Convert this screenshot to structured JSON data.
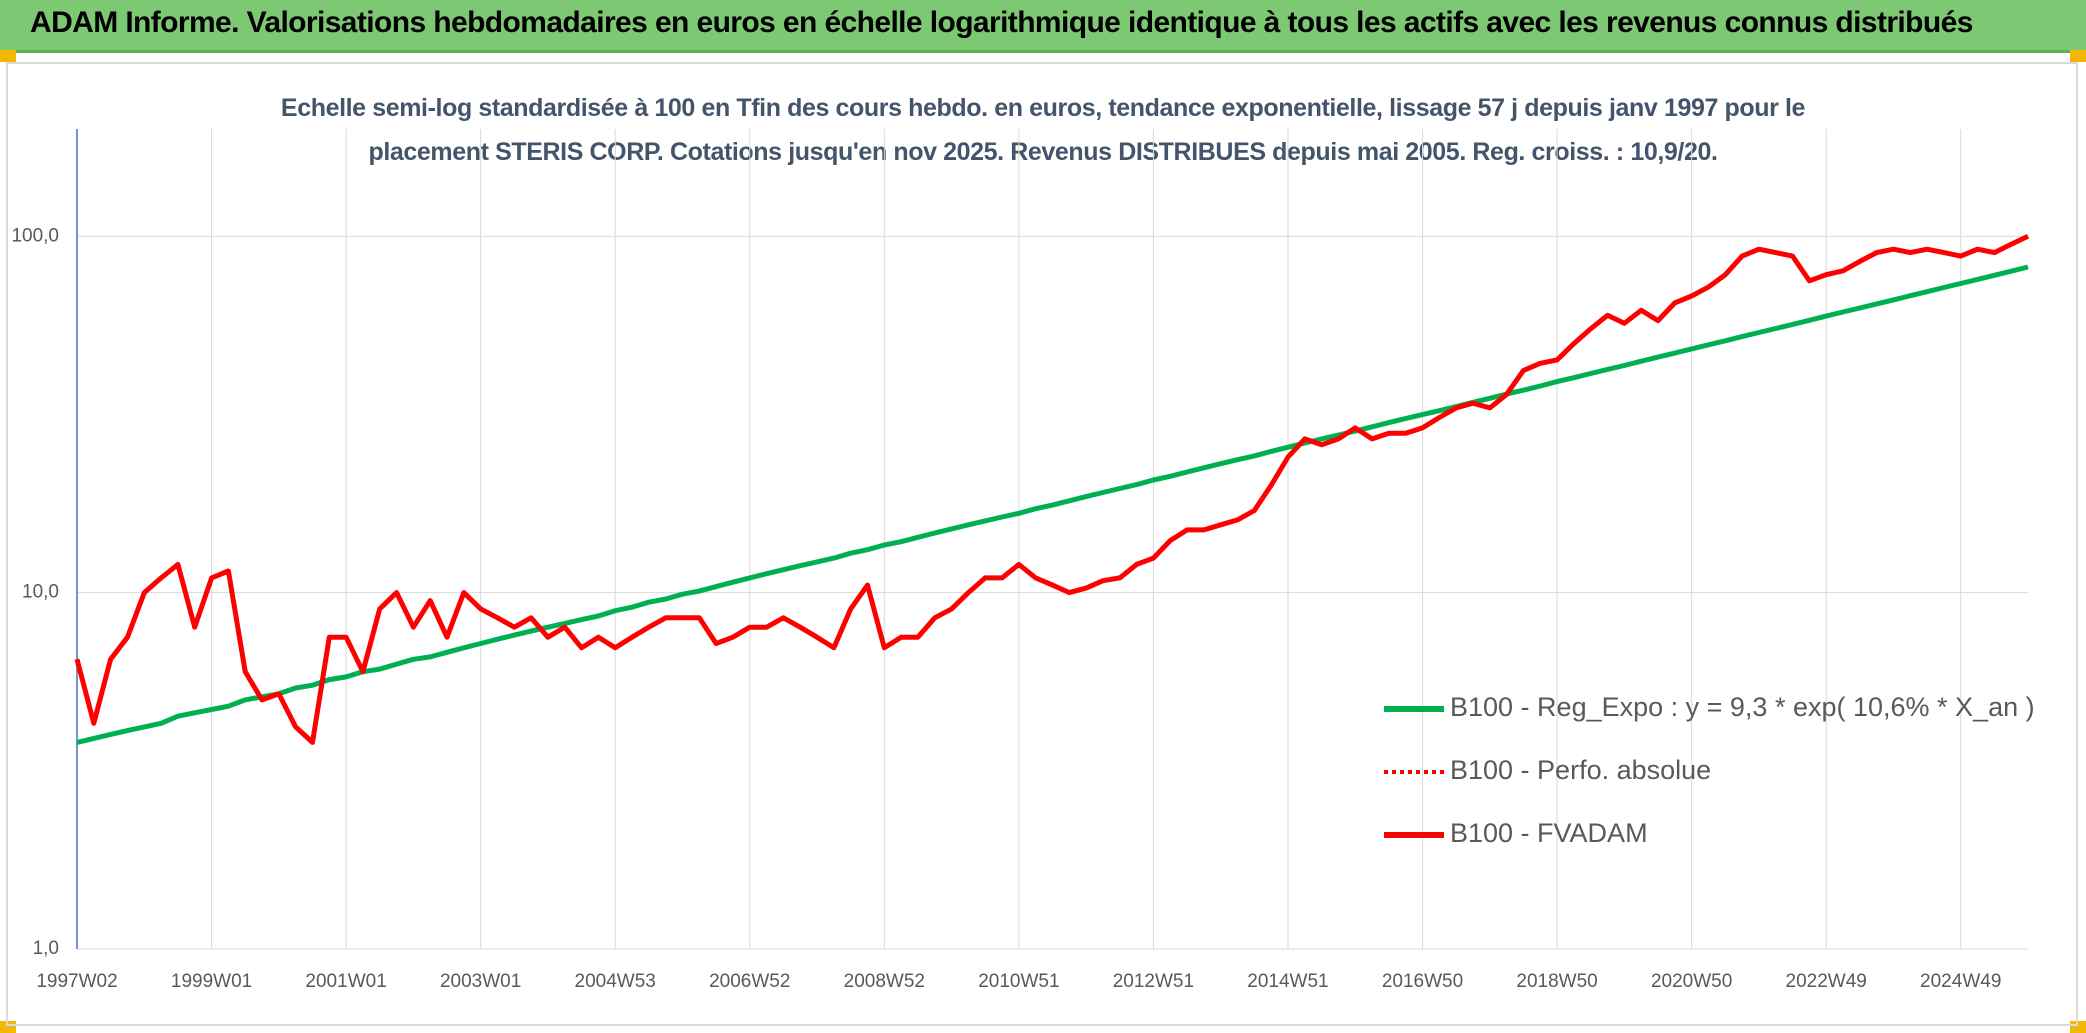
{
  "chart_data": {
    "type": "line",
    "title": "ADAM Informe. Valorisations hebdomadaires en euros en échelle logarithmique identique à tous les actifs avec les revenus connus distribués",
    "subtitle": [
      "Echelle semi-log standardisée à 100 en Tfin des cours hebdo. en euros, tendance exponentielle, lissage 57 j depuis janv 1997 pour le",
      "placement STERIS CORP. Cotations jusqu'en nov 2025. Revenus DISTRIBUES depuis mai 2005. Reg. croiss. : 10,9/20."
    ],
    "categories": [
      "1997W02",
      null,
      null,
      null,
      null,
      null,
      null,
      null,
      "1999W01",
      null,
      null,
      null,
      null,
      null,
      null,
      null,
      "2001W01",
      null,
      null,
      null,
      null,
      null,
      null,
      null,
      "2003W01",
      null,
      null,
      null,
      null,
      null,
      null,
      null,
      "2004W53",
      null,
      null,
      null,
      null,
      null,
      null,
      null,
      "2006W52",
      null,
      null,
      null,
      null,
      null,
      null,
      null,
      "2008W52",
      null,
      null,
      null,
      null,
      null,
      null,
      null,
      "2010W51",
      null,
      null,
      null,
      null,
      null,
      null,
      null,
      "2012W51",
      null,
      null,
      null,
      null,
      null,
      null,
      null,
      "2014W51",
      null,
      null,
      null,
      null,
      null,
      null,
      null,
      "2016W50",
      null,
      null,
      null,
      null,
      null,
      null,
      null,
      "2018W50",
      null,
      null,
      null,
      null,
      null,
      null,
      null,
      "2020W50",
      null,
      null,
      null,
      null,
      null,
      null,
      null,
      "2022W49",
      null,
      null,
      null,
      null,
      null,
      null,
      null,
      "2024W49",
      null,
      null,
      null,
      null
    ],
    "series": [
      {
        "name": "B100 - Reg_Expo : y = 9,3 * exp( 10,6% *  X_an )",
        "color": "#00b050",
        "style": "solid",
        "values": [
          3.8,
          3.9,
          4.0,
          4.1,
          4.2,
          4.3,
          4.5,
          4.6,
          4.7,
          4.8,
          5.0,
          5.1,
          5.2,
          5.4,
          5.5,
          5.7,
          5.8,
          6.0,
          6.1,
          6.3,
          6.5,
          6.6,
          6.8,
          7.0,
          7.2,
          7.4,
          7.6,
          7.8,
          8.0,
          8.2,
          8.4,
          8.6,
          8.9,
          9.1,
          9.4,
          9.6,
          9.9,
          10.1,
          10.4,
          10.7,
          11.0,
          11.3,
          11.6,
          11.9,
          12.2,
          12.5,
          12.9,
          13.2,
          13.6,
          13.9,
          14.3,
          14.7,
          15.1,
          15.5,
          15.9,
          16.3,
          16.7,
          17.2,
          17.6,
          18.1,
          18.6,
          19.1,
          19.6,
          20.1,
          20.7,
          21.2,
          21.8,
          22.4,
          23.0,
          23.6,
          24.2,
          24.9,
          25.6,
          26.3,
          27.0,
          27.7,
          28.4,
          29.2,
          30.0,
          30.8,
          31.6,
          32.4,
          33.3,
          34.2,
          35.1,
          36.1,
          37.0,
          38.0,
          39.1,
          40.1,
          41.2,
          42.3,
          43.4,
          44.6,
          45.8,
          47.0,
          48.3,
          49.6,
          50.9,
          52.3,
          53.7,
          55.1,
          56.6,
          58.1,
          59.7,
          61.3,
          62.9,
          64.6,
          66.3,
          68.1,
          69.9,
          71.8,
          73.7,
          75.7,
          77.7,
          79.8,
          82.0
        ]
      },
      {
        "name": "B100 - Perfo. absolue",
        "color": "#ff0000",
        "style": "dotted",
        "values": [
          6.5,
          4.3,
          6.5,
          7.5,
          10,
          11,
          12,
          8,
          11,
          11.5,
          6,
          5,
          5.2,
          4.2,
          3.8,
          7.5,
          7.5,
          6,
          9,
          10,
          8,
          9.5,
          7.5,
          10,
          9,
          8.5,
          8,
          8.5,
          7.5,
          8,
          7,
          7.5,
          7,
          7.5,
          8,
          8.5,
          8.5,
          8.5,
          7.2,
          7.5,
          8,
          8,
          8.5,
          8,
          7.5,
          7,
          9,
          10.5,
          7,
          7.5,
          7.5,
          8.5,
          9,
          10,
          11,
          11,
          12,
          11,
          10.5,
          10,
          10.3,
          10.8,
          11,
          12,
          12.5,
          14,
          15,
          15,
          15.5,
          16,
          17,
          20,
          24,
          27,
          26,
          27,
          29,
          27,
          28,
          28,
          29,
          31,
          33,
          34,
          33,
          36,
          42,
          44,
          45,
          50,
          55,
          60,
          57,
          62,
          58,
          65,
          68,
          72,
          78,
          88,
          92,
          90,
          88,
          75,
          78,
          80,
          85,
          90,
          92,
          90,
          92,
          90,
          88,
          92,
          90,
          95,
          100
        ]
      },
      {
        "name": "B100 - FVADAM",
        "color": "#ff0000",
        "style": "solid",
        "values": [
          6.5,
          4.3,
          6.5,
          7.5,
          10,
          11,
          12,
          8,
          11,
          11.5,
          6,
          5,
          5.2,
          4.2,
          3.8,
          7.5,
          7.5,
          6,
          9,
          10,
          8,
          9.5,
          7.5,
          10,
          9,
          8.5,
          8,
          8.5,
          7.5,
          8,
          7,
          7.5,
          7,
          7.5,
          8,
          8.5,
          8.5,
          8.5,
          7.2,
          7.5,
          8,
          8,
          8.5,
          8,
          7.5,
          7,
          9,
          10.5,
          7,
          7.5,
          7.5,
          8.5,
          9,
          10,
          11,
          11,
          12,
          11,
          10.5,
          10,
          10.3,
          10.8,
          11,
          12,
          12.5,
          14,
          15,
          15,
          15.5,
          16,
          17,
          20,
          24,
          27,
          26,
          27,
          29,
          27,
          28,
          28,
          29,
          31,
          33,
          34,
          33,
          36,
          42,
          44,
          45,
          50,
          55,
          60,
          57,
          62,
          58,
          65,
          68,
          72,
          78,
          88,
          92,
          90,
          88,
          75,
          78,
          80,
          85,
          90,
          92,
          90,
          92,
          90,
          88,
          92,
          90,
          95,
          100
        ]
      }
    ],
    "log_y": true,
    "ylim": [
      1,
      200
    ],
    "yticks": [
      {
        "value": 1,
        "label": "1,0"
      },
      {
        "value": 10,
        "label": "10,0"
      },
      {
        "value": 100,
        "label": "100,0"
      }
    ],
    "grid": true,
    "legend": "lower right"
  }
}
